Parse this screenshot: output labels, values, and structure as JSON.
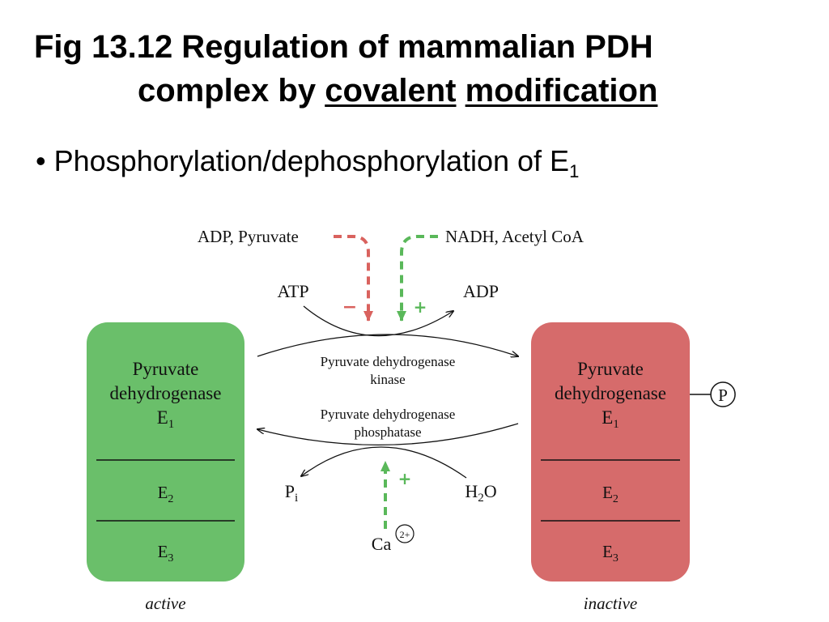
{
  "title": {
    "line1": "Fig 13.12  Regulation of mammalian PDH",
    "line2_prefix": "complex by ",
    "line2_word1": "covalent",
    "line2_word2": "modification"
  },
  "bullet": {
    "symbol": "•",
    "text": "Phosphorylation/dephosphorylation of E",
    "subscript": "1"
  },
  "diagram": {
    "regulators": {
      "kinase_inhibitors": "ADP, Pyruvate",
      "kinase_activators": "NADH, Acetyl CoA",
      "kinase_inhibitor_sign": "−",
      "kinase_activator_sign": "+",
      "phosphatase_activator": "Ca",
      "phosphatase_activator_charge": "2+",
      "phosphatase_activator_sign": "+"
    },
    "kinase_reaction": {
      "substrate": "ATP",
      "product": "ADP",
      "enzyme_line1": "Pyruvate dehydrogenase",
      "enzyme_line2": "kinase"
    },
    "phosphatase_reaction": {
      "product_base": "P",
      "product_sub": "i",
      "substrate_base": "H",
      "substrate_sub": "2",
      "substrate_end": "O",
      "enzyme_line1": "Pyruvate dehydrogenase",
      "enzyme_line2": "phosphatase"
    },
    "active_complex": {
      "line1": "Pyruvate",
      "line2": "dehydrogenase",
      "e1_base": "E",
      "e1_sub": "1",
      "e2_base": "E",
      "e2_sub": "2",
      "e3_base": "E",
      "e3_sub": "3",
      "state": "active",
      "color": "#6abf6a"
    },
    "inactive_complex": {
      "line1": "Pyruvate",
      "line2": "dehydrogenase",
      "e1_base": "E",
      "e1_sub": "1",
      "e2_base": "E",
      "e2_sub": "2",
      "e3_base": "E",
      "e3_sub": "3",
      "state": "inactive",
      "phosphate": "P",
      "color": "#d66b6b"
    },
    "colors": {
      "inhibition": "#d9625e",
      "activation": "#5ab85a"
    }
  }
}
